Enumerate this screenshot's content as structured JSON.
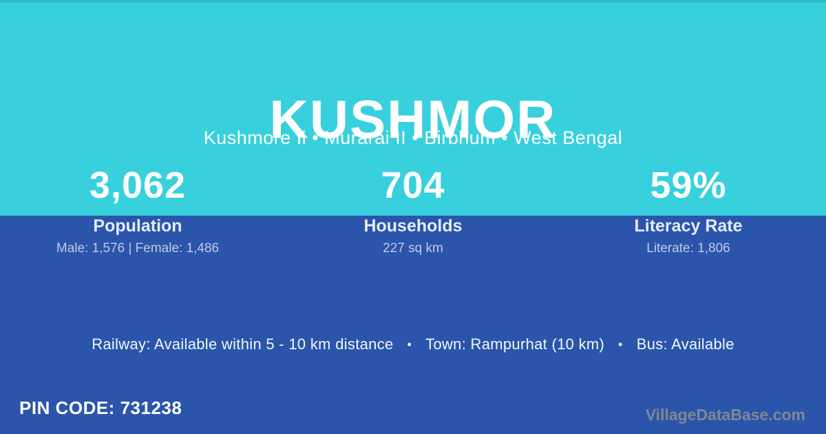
{
  "header": {
    "title": "KUSHMOR",
    "subtitle": "Kushmore Ii • Murarai II • Birbhum • West Bengal"
  },
  "stats": [
    {
      "value": "3,062",
      "label": "Population",
      "detail": "Male: 1,576 | Female: 1,486"
    },
    {
      "value": "704",
      "label": "Households",
      "detail": "227 sq km"
    },
    {
      "value": "59%",
      "label": "Literacy Rate",
      "detail": "Literate: 1,806"
    }
  ],
  "amenities": {
    "railway": "Railway: Available within 5 - 10 km distance",
    "town": "Town: Rampurhat (10 km)",
    "bus": "Bus: Available",
    "separator": "•"
  },
  "footer": {
    "pin_code": "PIN CODE: 731238",
    "watermark": "VillageDataBase.com"
  },
  "colors": {
    "top_background": "#39d0dd",
    "bottom_background": "#2b55aa",
    "primary_text": "#ffffff",
    "muted_text": "#bfc9e6",
    "watermark_text": "#8e928f"
  }
}
